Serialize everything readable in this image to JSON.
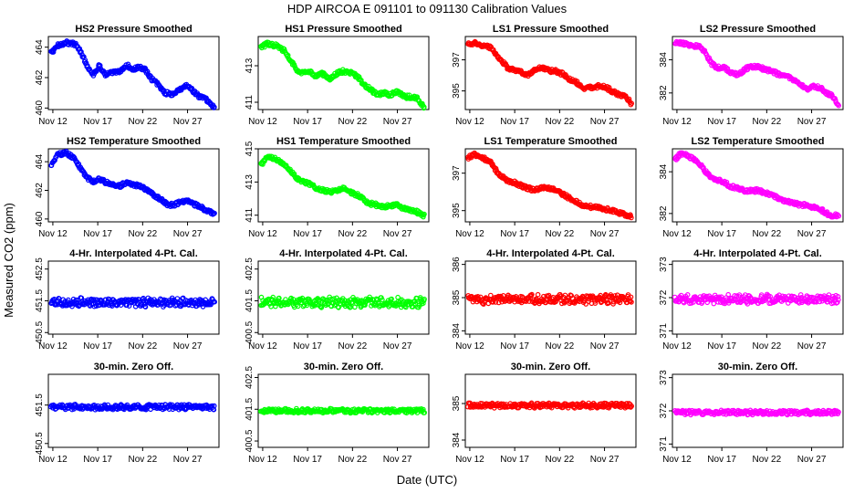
{
  "figure": {
    "title": "HDP    AIRCOA E    091101 to 091130    Calibration Values",
    "xlabel": "Date (UTC)",
    "ylabel": "Measured CO2 (ppm)",
    "x_tick_labels": [
      "Nov 12",
      "Nov 17",
      "Nov 22",
      "Nov 27"
    ]
  },
  "colors": {
    "HS2": "#0000ff",
    "HS1": "#00ff00",
    "LS1": "#ff0000",
    "LS2": "#ff00ff"
  },
  "chart_data": [
    {
      "type": "scatter",
      "title": "HS2 Pressure Smoothed",
      "color": "HS2",
      "ylim": [
        459.9,
        464.7
      ],
      "yticks": [
        460,
        462,
        464
      ],
      "xlim": [
        11.5,
        30.5
      ],
      "xticks": [
        12,
        17,
        22,
        27
      ],
      "series": [
        {
          "name": "HS2 Pressure Smoothed",
          "profile_x": [
            11.8,
            12.5,
            13.5,
            14.5,
            15.2,
            15.8,
            16.5,
            17.2,
            17.8,
            18.5,
            19.5,
            20.3,
            21.0,
            21.5,
            22.3,
            23.0,
            23.8,
            24.5,
            25.3,
            26.2,
            27.0,
            27.8,
            28.4,
            29.0,
            29.6,
            30.0
          ],
          "profile_y": [
            463.6,
            464.1,
            464.3,
            464.2,
            463.6,
            462.8,
            462.2,
            462.8,
            462.2,
            462.3,
            462.4,
            462.8,
            462.5,
            462.7,
            462.5,
            461.9,
            461.5,
            461.0,
            460.9,
            461.2,
            461.5,
            461.0,
            460.7,
            460.6,
            460.2,
            460.1
          ]
        }
      ]
    },
    {
      "type": "scatter",
      "title": "HS1 Pressure Smoothed",
      "color": "HS1",
      "ylim": [
        410.6,
        414.6
      ],
      "yticks": [
        411,
        413
      ],
      "xlim": [
        11.5,
        30.5
      ],
      "xticks": [
        12,
        17,
        22,
        27
      ],
      "series": [
        {
          "name": "HS1 Pressure Smoothed",
          "profile_x": [
            11.8,
            12.5,
            13.5,
            14.5,
            15.2,
            15.8,
            16.5,
            17.2,
            17.8,
            18.5,
            19.5,
            20.3,
            21.0,
            21.8,
            22.6,
            23.2,
            24.0,
            24.8,
            25.5,
            26.2,
            27.0,
            27.8,
            28.5,
            29.2,
            29.7,
            30.0
          ],
          "profile_y": [
            414.0,
            414.2,
            414.1,
            413.8,
            413.2,
            412.8,
            412.6,
            412.7,
            412.4,
            412.6,
            412.3,
            412.6,
            412.7,
            412.6,
            412.4,
            412.0,
            411.7,
            411.4,
            411.5,
            411.4,
            411.6,
            411.3,
            411.3,
            411.2,
            410.9,
            410.7
          ]
        }
      ]
    },
    {
      "type": "scatter",
      "title": "LS1 Pressure Smoothed",
      "color": "LS1",
      "ylim": [
        393.8,
        398.5
      ],
      "yticks": [
        395,
        397
      ],
      "xlim": [
        11.5,
        30.5
      ],
      "xticks": [
        12,
        17,
        22,
        27
      ],
      "series": [
        {
          "name": "LS1 Pressure Smoothed",
          "profile_x": [
            11.8,
            12.5,
            13.5,
            14.3,
            15.0,
            15.6,
            16.2,
            17.0,
            17.8,
            18.5,
            19.2,
            20.0,
            20.8,
            21.5,
            22.3,
            23.0,
            23.8,
            24.5,
            25.5,
            26.3,
            27.0,
            27.8,
            28.5,
            29.2,
            29.7,
            30.0
          ],
          "profile_y": [
            398.0,
            398.1,
            397.9,
            397.8,
            397.3,
            396.9,
            396.5,
            396.3,
            396.2,
            396.0,
            396.4,
            396.5,
            396.3,
            396.3,
            396.1,
            395.8,
            395.6,
            395.2,
            395.2,
            395.3,
            395.3,
            395.0,
            394.8,
            394.7,
            394.4,
            394.1
          ]
        }
      ]
    },
    {
      "type": "scatter",
      "title": "LS2 Pressure Smoothed",
      "color": "LS2",
      "ylim": [
        381.0,
        385.4
      ],
      "yticks": [
        382,
        384
      ],
      "xlim": [
        11.5,
        30.5
      ],
      "xticks": [
        12,
        17,
        22,
        27
      ],
      "series": [
        {
          "name": "LS2 Pressure Smoothed",
          "profile_x": [
            11.8,
            12.5,
            13.5,
            14.5,
            15.2,
            15.8,
            16.5,
            17.2,
            18.0,
            18.8,
            19.5,
            20.2,
            21.0,
            21.8,
            22.6,
            23.4,
            24.2,
            25.0,
            25.8,
            26.5,
            27.2,
            28.0,
            28.7,
            29.3,
            29.8,
            30.0
          ],
          "profile_y": [
            385.0,
            385.0,
            384.9,
            384.8,
            384.4,
            383.8,
            383.5,
            383.6,
            383.2,
            383.1,
            383.4,
            383.6,
            383.6,
            383.4,
            383.3,
            383.1,
            383.0,
            382.8,
            382.5,
            382.2,
            382.4,
            382.3,
            382.0,
            381.8,
            381.4,
            381.3
          ]
        }
      ]
    },
    {
      "type": "scatter",
      "title": "HS2 Temperature Smoothed",
      "color": "HS2",
      "ylim": [
        459.8,
        464.9
      ],
      "yticks": [
        460,
        462,
        464
      ],
      "xlim": [
        11.5,
        30.5
      ],
      "xticks": [
        12,
        17,
        22,
        27
      ],
      "series": [
        {
          "name": "HS2 Temperature Smoothed",
          "profile_x": [
            11.8,
            12.5,
            13.5,
            14.5,
            15.2,
            15.8,
            16.5,
            17.2,
            17.8,
            18.5,
            19.5,
            20.3,
            21.0,
            21.8,
            22.6,
            23.3,
            24.0,
            24.8,
            25.5,
            26.3,
            27.0,
            27.8,
            28.4,
            29.0,
            29.6,
            30.0
          ],
          "profile_y": [
            463.8,
            464.5,
            464.6,
            464.2,
            463.4,
            462.9,
            462.6,
            462.8,
            462.6,
            462.4,
            462.3,
            462.6,
            462.4,
            462.3,
            462.0,
            461.6,
            461.4,
            461.0,
            461.0,
            461.2,
            461.3,
            461.0,
            460.9,
            460.6,
            460.5,
            460.4
          ]
        }
      ]
    },
    {
      "type": "scatter",
      "title": "HS1 Temperature Smoothed",
      "color": "HS1",
      "ylim": [
        410.6,
        415.0
      ],
      "yticks": [
        411,
        413,
        415
      ],
      "xlim": [
        11.5,
        30.5
      ],
      "xticks": [
        12,
        17,
        22,
        27
      ],
      "series": [
        {
          "name": "HS1 Temperature Smoothed",
          "profile_x": [
            11.8,
            12.5,
            13.5,
            14.5,
            15.2,
            15.8,
            16.5,
            17.2,
            18.0,
            18.8,
            19.5,
            20.3,
            21.0,
            21.8,
            22.6,
            23.3,
            24.0,
            24.8,
            25.5,
            26.3,
            27.0,
            27.8,
            28.5,
            29.2,
            29.7,
            30.0
          ],
          "profile_y": [
            414.0,
            414.5,
            414.4,
            414.0,
            413.6,
            413.2,
            413.0,
            412.9,
            412.6,
            412.5,
            412.4,
            412.5,
            412.6,
            412.4,
            412.2,
            411.9,
            411.7,
            411.6,
            411.5,
            411.6,
            411.6,
            411.4,
            411.3,
            411.2,
            411.0,
            411.0
          ]
        }
      ]
    },
    {
      "type": "scatter",
      "title": "LS1 Temperature Smoothed",
      "color": "LS1",
      "ylim": [
        394.4,
        398.3
      ],
      "yticks": [
        395,
        397
      ],
      "xlim": [
        11.5,
        30.5
      ],
      "xticks": [
        12,
        17,
        22,
        27
      ],
      "series": [
        {
          "name": "LS1 Temperature Smoothed",
          "profile_x": [
            11.8,
            12.5,
            13.5,
            14.3,
            15.0,
            15.6,
            16.2,
            17.0,
            17.8,
            18.5,
            19.2,
            20.0,
            20.8,
            21.5,
            22.3,
            23.0,
            23.8,
            24.5,
            25.5,
            26.3,
            27.0,
            27.8,
            28.5,
            29.2,
            29.7,
            30.0
          ],
          "profile_y": [
            397.8,
            398.0,
            397.8,
            397.6,
            397.1,
            396.8,
            396.6,
            396.5,
            396.3,
            396.2,
            396.1,
            396.2,
            396.2,
            396.1,
            395.9,
            395.7,
            395.5,
            395.3,
            395.2,
            395.2,
            395.1,
            395.0,
            394.9,
            394.8,
            394.7,
            394.7
          ]
        }
      ]
    },
    {
      "type": "scatter",
      "title": "LS2 Temperature Smoothed",
      "color": "LS2",
      "ylim": [
        381.6,
        385.1
      ],
      "yticks": [
        382,
        384
      ],
      "xlim": [
        11.5,
        30.5
      ],
      "xticks": [
        12,
        17,
        22,
        27
      ],
      "series": [
        {
          "name": "LS2 Temperature Smoothed",
          "profile_x": [
            11.8,
            12.5,
            13.5,
            14.5,
            15.2,
            15.8,
            16.5,
            17.2,
            18.0,
            18.8,
            19.5,
            20.2,
            21.0,
            21.8,
            22.6,
            23.4,
            24.2,
            25.0,
            25.8,
            26.5,
            27.2,
            28.0,
            28.7,
            29.3,
            29.8,
            30.0
          ],
          "profile_y": [
            384.6,
            384.9,
            384.7,
            384.4,
            384.0,
            383.7,
            383.6,
            383.5,
            383.3,
            383.2,
            383.1,
            383.1,
            383.1,
            383.0,
            382.9,
            382.7,
            382.6,
            382.5,
            382.4,
            382.4,
            382.3,
            382.2,
            382.0,
            381.9,
            381.9,
            381.9
          ]
        }
      ]
    },
    {
      "type": "scatter",
      "title": "4-Hr. Interpolated 4-Pt. Cal.",
      "color": "HS2",
      "ylim": [
        450.45,
        452.75
      ],
      "yticks": [
        450.5,
        451.5,
        452.5
      ],
      "xlim": [
        11.5,
        30.5
      ],
      "xticks": [
        12,
        17,
        22,
        27
      ],
      "series": [
        {
          "name": "4-Hr. Interpolated 4-Pt. Cal.",
          "level": 451.45,
          "spread": 0.12
        }
      ]
    },
    {
      "type": "scatter",
      "title": "4-Hr. Interpolated 4-Pt. Cal.",
      "color": "HS1",
      "ylim": [
        400.45,
        402.75
      ],
      "yticks": [
        400.5,
        401.5,
        402.5
      ],
      "xlim": [
        11.5,
        30.5
      ],
      "xticks": [
        12,
        17,
        22,
        27
      ],
      "series": [
        {
          "name": "4-Hr. Interpolated 4-Pt. Cal.",
          "level": 401.45,
          "spread": 0.14
        }
      ]
    },
    {
      "type": "scatter",
      "title": "4-Hr. Interpolated 4-Pt. Cal.",
      "color": "LS1",
      "ylim": [
        383.9,
        386.1
      ],
      "yticks": [
        384.0,
        385.0,
        386.0
      ],
      "xlim": [
        11.5,
        30.5
      ],
      "xticks": [
        12,
        17,
        22,
        27
      ],
      "series": [
        {
          "name": "4-Hr. Interpolated 4-Pt. Cal.",
          "level": 384.95,
          "spread": 0.12
        }
      ]
    },
    {
      "type": "scatter",
      "title": "4-Hr. Interpolated 4-Pt. Cal.",
      "color": "LS2",
      "ylim": [
        370.9,
        373.1
      ],
      "yticks": [
        371.0,
        372.0,
        373.0
      ],
      "xlim": [
        11.5,
        30.5
      ],
      "xticks": [
        12,
        17,
        22,
        27
      ],
      "series": [
        {
          "name": "4-Hr. Interpolated 4-Pt. Cal.",
          "level": 371.95,
          "spread": 0.12
        }
      ]
    },
    {
      "type": "scatter",
      "title": "30-min. Zero Off.",
      "color": "HS2",
      "ylim": [
        450.4,
        452.3
      ],
      "yticks": [
        450.5,
        451.5
      ],
      "xlim": [
        11.5,
        30.5
      ],
      "xticks": [
        12,
        17,
        22,
        27
      ],
      "series": [
        {
          "name": "30-min. Zero Off.",
          "level": 451.45,
          "spread": 0.06
        }
      ]
    },
    {
      "type": "scatter",
      "title": "30-min. Zero Off.",
      "color": "HS1",
      "ylim": [
        400.3,
        402.6
      ],
      "yticks": [
        400.5,
        401.5,
        402.5
      ],
      "xlim": [
        11.5,
        30.5
      ],
      "xticks": [
        12,
        17,
        22,
        27
      ],
      "series": [
        {
          "name": "30-min. Zero Off.",
          "level": 401.45,
          "spread": 0.06
        }
      ]
    },
    {
      "type": "scatter",
      "title": "30-min. Zero Off.",
      "color": "LS1",
      "ylim": [
        383.8,
        385.8
      ],
      "yticks": [
        384.0,
        385.0
      ],
      "xlim": [
        11.5,
        30.5
      ],
      "xticks": [
        12,
        17,
        22,
        27
      ],
      "series": [
        {
          "name": "30-min. Zero Off.",
          "level": 384.95,
          "spread": 0.06
        }
      ]
    },
    {
      "type": "scatter",
      "title": "30-min. Zero Off.",
      "color": "LS2",
      "ylim": [
        370.9,
        373.1
      ],
      "yticks": [
        371.0,
        372.0,
        373.0
      ],
      "xlim": [
        11.5,
        30.5
      ],
      "xticks": [
        12,
        17,
        22,
        27
      ],
      "series": [
        {
          "name": "30-min. Zero Off.",
          "level": 371.95,
          "spread": 0.06
        }
      ]
    }
  ]
}
